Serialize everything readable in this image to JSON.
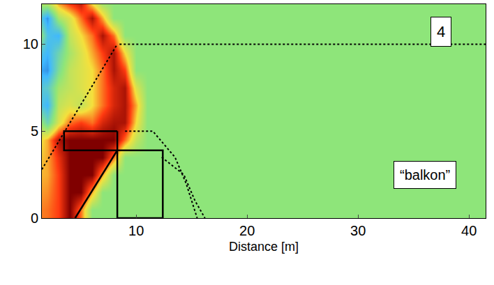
{
  "chart_data": {
    "type": "heatmap",
    "x_label": "Distance [m]",
    "xlim": [
      1.5,
      41.5
    ],
    "xticks": [
      10,
      20,
      30,
      40
    ],
    "ylim": [
      0,
      12.3
    ],
    "yticks": [
      0,
      5,
      10
    ],
    "grid": false,
    "x": [
      1,
      2,
      3,
      4,
      5,
      6,
      7,
      8,
      9,
      10,
      11,
      12,
      13
    ],
    "y": [
      0.5,
      1.5,
      2.5,
      3.5,
      4.5,
      5.5,
      6.5,
      7.5,
      8.5,
      9.5,
      10.5,
      11.5,
      12.5
    ],
    "zlim": [
      -1,
      1
    ],
    "z": [
      [
        0.55,
        0.6,
        0.7,
        1,
        0.6,
        0,
        0,
        0,
        0,
        0,
        0,
        0,
        0
      ],
      [
        0.5,
        0.55,
        0.7,
        1,
        1,
        0.5,
        0,
        0,
        0,
        0,
        0,
        0,
        0
      ],
      [
        0.45,
        0.5,
        0.7,
        1,
        1,
        1,
        0.5,
        0,
        0,
        0,
        0,
        0,
        0
      ],
      [
        0.4,
        0.5,
        0.75,
        1,
        1,
        1,
        1,
        0.6,
        0,
        0,
        0,
        0,
        0
      ],
      [
        0.3,
        0.5,
        0.9,
        1,
        1,
        1,
        1,
        1,
        0.6,
        0.2,
        0,
        0,
        0
      ],
      [
        0.2,
        -0.2,
        0.3,
        0.6,
        0.7,
        0.6,
        0.8,
        0.9,
        0.9,
        0.4,
        0,
        0,
        0
      ],
      [
        -0.3,
        -0.5,
        0.2,
        0.3,
        0.2,
        0.4,
        0.6,
        0.8,
        0.9,
        0.5,
        0,
        0,
        0
      ],
      [
        -0.4,
        -0.3,
        0.1,
        0.2,
        0.3,
        0.4,
        0.6,
        0.8,
        0.9,
        0.3,
        0,
        0,
        0
      ],
      [
        -0.5,
        -0.6,
        -0.1,
        0.2,
        0.3,
        0.4,
        0.6,
        0.9,
        0.7,
        0,
        0,
        0,
        0
      ],
      [
        -0.3,
        -0.5,
        -0.2,
        0.1,
        0.3,
        0.5,
        0.7,
        0.9,
        0.4,
        0,
        0,
        0,
        0
      ],
      [
        0.3,
        -0.4,
        -0.5,
        0.2,
        0.4,
        0.6,
        0.9,
        0.6,
        0,
        0,
        0,
        0,
        0
      ],
      [
        -0.2,
        -0.6,
        0.1,
        0.3,
        0.6,
        0.9,
        0.5,
        0,
        0,
        0,
        0,
        0,
        0
      ],
      [
        0.2,
        0.3,
        0.6,
        0.8,
        0.9,
        0.3,
        0,
        0,
        0,
        0,
        0,
        0,
        0
      ]
    ],
    "outlines": [
      {
        "x": [
          8.3,
          12.4,
          12.4,
          8.3
        ],
        "y": [
          0,
          0,
          3.9,
          3.9
        ],
        "line_style": "solid"
      },
      {
        "x": [
          8.3,
          8.3
        ],
        "y": [
          0,
          5
        ],
        "line_style": "solid"
      },
      {
        "x": [
          4.5,
          8.3
        ],
        "y": [
          0,
          3.9
        ],
        "line_style": "solid"
      },
      {
        "x": [
          8.3,
          3.5,
          3.5,
          8.3
        ],
        "y": [
          5,
          5,
          3.9,
          3.9
        ],
        "line_style": "solid"
      },
      {
        "x": [
          8.5,
          41.5
        ],
        "y": [
          10,
          10
        ],
        "line_style": "dotted"
      },
      {
        "x": [
          1.5,
          8.3
        ],
        "y": [
          2.8,
          10
        ],
        "line_style": "dotted"
      },
      {
        "x": [
          9,
          11.5,
          13.5,
          14.5,
          15.5
        ],
        "y": [
          5,
          5,
          3.5,
          2,
          0
        ],
        "line_style": "dotted"
      },
      {
        "x": [
          12.3,
          14.3,
          15.3,
          16.2
        ],
        "y": [
          3.5,
          2.5,
          1,
          0
        ],
        "line_style": "dotted"
      }
    ],
    "annotations": [
      {
        "text": "4",
        "x": 37.5,
        "y": 10.7
      },
      {
        "text": "“balkon”",
        "x": 36,
        "y": 2.5
      }
    ]
  }
}
